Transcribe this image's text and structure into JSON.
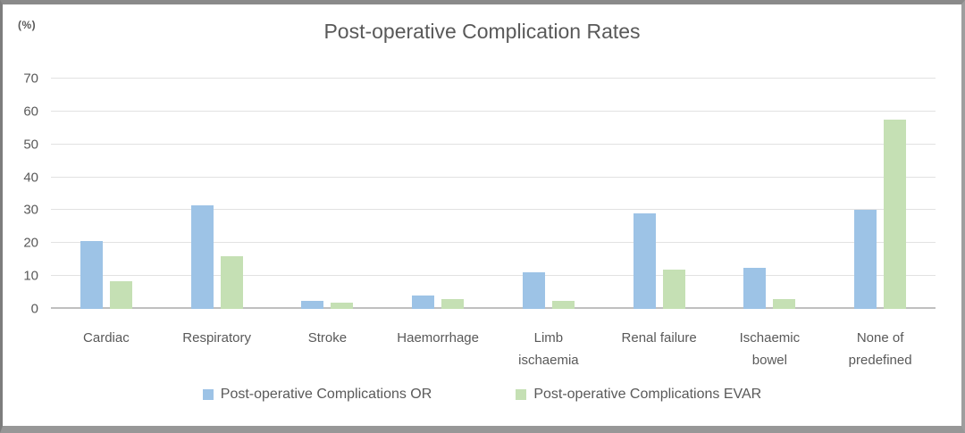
{
  "figure": {
    "y_unit_label": "(%)"
  },
  "chart_data": {
    "type": "bar",
    "title": "Post-operative Complication Rates",
    "categories": [
      "Cardiac",
      "Respiratory",
      "Stroke",
      "Haemorrhage",
      "Limb\nischaemia",
      "Renal failure",
      "Ischaemic\nbowel",
      "None of\npredefined"
    ],
    "series": [
      {
        "name": "Post-operative Complications OR",
        "color": "#9DC3E6",
        "values": [
          20.5,
          31.5,
          2.5,
          4,
          11,
          29,
          12.5,
          30
        ]
      },
      {
        "name": "Post-operative Complications EVAR",
        "color": "#C5E0B4",
        "values": [
          8.5,
          16,
          2,
          3,
          2.5,
          12,
          3,
          57.5
        ]
      }
    ],
    "xlabel": "",
    "ylabel": "(%)",
    "ylim": [
      0,
      70
    ],
    "ytick_step": 10,
    "grid": true,
    "legend_position": "bottom"
  },
  "colors": {
    "text": "#595959",
    "gridline": "#e2e2e2",
    "axis_line": "#bfbfbf",
    "frame_border": "#8a8a8a",
    "background": "#ffffff"
  }
}
